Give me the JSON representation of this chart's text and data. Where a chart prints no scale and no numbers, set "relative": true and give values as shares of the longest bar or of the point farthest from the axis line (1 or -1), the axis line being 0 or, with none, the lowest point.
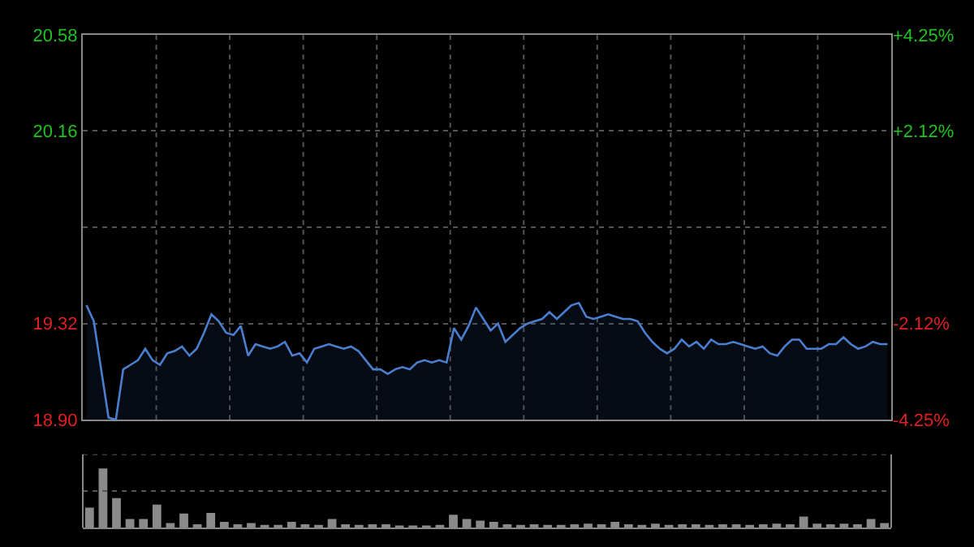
{
  "chart_data": [
    {
      "type": "area",
      "color": "#4a7fd0",
      "grid": true,
      "tick_labels": "y",
      "ylim": [
        18.9,
        20.58
      ],
      "yticks": [
        {
          "value": 18.9,
          "label": "18.90"
        },
        {
          "value": 19.32,
          "label": "19.32"
        },
        {
          "value": 19.74,
          "label": null
        },
        {
          "value": 20.16,
          "label": "20.16"
        },
        {
          "value": 20.58,
          "label": "20.58"
        }
      ],
      "y2lim": [
        -4.25,
        4.25
      ],
      "y2ticks": [
        {
          "value": -4.25,
          "label": "-4.25%"
        },
        {
          "value": -2.12,
          "label": "-2.12%"
        },
        {
          "value": 0,
          "label": null
        },
        {
          "value": 2.12,
          "label": "+2.12%"
        },
        {
          "value": 4.25,
          "label": "+4.25%"
        }
      ],
      "categories": [
        null,
        null,
        null,
        null,
        null,
        null,
        null,
        null,
        null,
        null,
        null,
        null,
        null,
        null,
        null,
        null,
        null,
        null,
        null,
        null,
        null,
        null,
        null,
        null,
        null,
        null,
        null,
        null,
        null,
        null,
        null,
        null,
        null,
        null,
        null,
        null,
        null,
        null,
        null,
        null,
        null,
        null,
        null,
        null,
        null,
        null,
        null,
        null,
        null,
        null,
        null,
        null,
        null,
        null,
        null,
        null,
        null,
        null,
        null,
        null,
        null,
        null,
        null,
        null,
        null,
        null,
        null,
        null,
        null,
        null,
        null,
        null,
        null,
        null,
        null,
        null,
        null,
        null,
        null,
        null,
        null,
        null,
        null,
        null,
        null,
        null,
        null,
        null,
        null,
        null,
        null,
        null,
        null,
        null,
        null,
        null,
        null,
        null,
        null,
        null,
        null,
        null,
        null,
        null,
        null,
        null,
        null,
        null,
        null,
        null
      ],
      "values": [
        19.4,
        19.33,
        19.12,
        18.91,
        18.9,
        19.12,
        19.14,
        19.16,
        19.21,
        19.16,
        19.14,
        19.19,
        19.2,
        19.22,
        19.18,
        19.21,
        19.28,
        19.36,
        19.33,
        19.28,
        19.27,
        19.31,
        19.18,
        19.23,
        19.22,
        19.21,
        19.22,
        19.24,
        19.18,
        19.19,
        19.15,
        19.21,
        19.22,
        19.23,
        19.22,
        19.21,
        19.22,
        19.2,
        19.16,
        19.12,
        19.12,
        19.1,
        19.12,
        19.13,
        19.12,
        19.15,
        19.16,
        19.15,
        19.16,
        19.15,
        19.3,
        19.25,
        19.31,
        19.39,
        19.34,
        19.29,
        19.32,
        19.24,
        19.27,
        19.3,
        19.32,
        19.33,
        19.34,
        19.37,
        19.34,
        19.37,
        19.4,
        19.41,
        19.35,
        19.34,
        19.35,
        19.36,
        19.35,
        19.34,
        19.34,
        19.33,
        19.28,
        19.24,
        19.21,
        19.19,
        19.21,
        19.25,
        19.22,
        19.24,
        19.21,
        19.25,
        19.23,
        19.23,
        19.24,
        19.23,
        19.22,
        19.21,
        19.22,
        19.19,
        19.18,
        19.22,
        19.25,
        19.25,
        19.21,
        19.21,
        19.21,
        19.23,
        19.23,
        19.26,
        19.23,
        19.21,
        19.22,
        19.24,
        19.23,
        19.23
      ]
    },
    {
      "type": "bar",
      "relative": true,
      "color": "#8a8a8a",
      "tick_labels": false,
      "categories": [
        null,
        null,
        null,
        null,
        null,
        null,
        null,
        null,
        null,
        null,
        null,
        null,
        null,
        null,
        null,
        null,
        null,
        null,
        null,
        null,
        null,
        null,
        null,
        null,
        null,
        null,
        null,
        null,
        null,
        null,
        null,
        null,
        null,
        null,
        null,
        null,
        null,
        null,
        null,
        null,
        null,
        null,
        null,
        null,
        null,
        null,
        null,
        null,
        null,
        null,
        null,
        null,
        null,
        null,
        null,
        null,
        null,
        null,
        null,
        null
      ],
      "values": [
        0.34,
        1.0,
        0.5,
        0.15,
        0.15,
        0.39,
        0.08,
        0.24,
        0.06,
        0.25,
        0.1,
        0.06,
        0.08,
        0.05,
        0.05,
        0.1,
        0.06,
        0.05,
        0.15,
        0.06,
        0.05,
        0.06,
        0.06,
        0.04,
        0.04,
        0.04,
        0.05,
        0.22,
        0.15,
        0.12,
        0.1,
        0.06,
        0.05,
        0.06,
        0.05,
        0.05,
        0.06,
        0.07,
        0.06,
        0.1,
        0.06,
        0.05,
        0.07,
        0.05,
        0.06,
        0.06,
        0.05,
        0.06,
        0.06,
        0.05,
        0.06,
        0.07,
        0.06,
        0.19,
        0.07,
        0.06,
        0.07,
        0.06,
        0.15,
        0.08
      ],
      "ref_lines": [
        {
          "axis": "y",
          "value": 0.62,
          "line_style": "dotted"
        },
        {
          "axis": "y",
          "value": 1.24,
          "line_style": "dotted"
        }
      ]
    }
  ]
}
